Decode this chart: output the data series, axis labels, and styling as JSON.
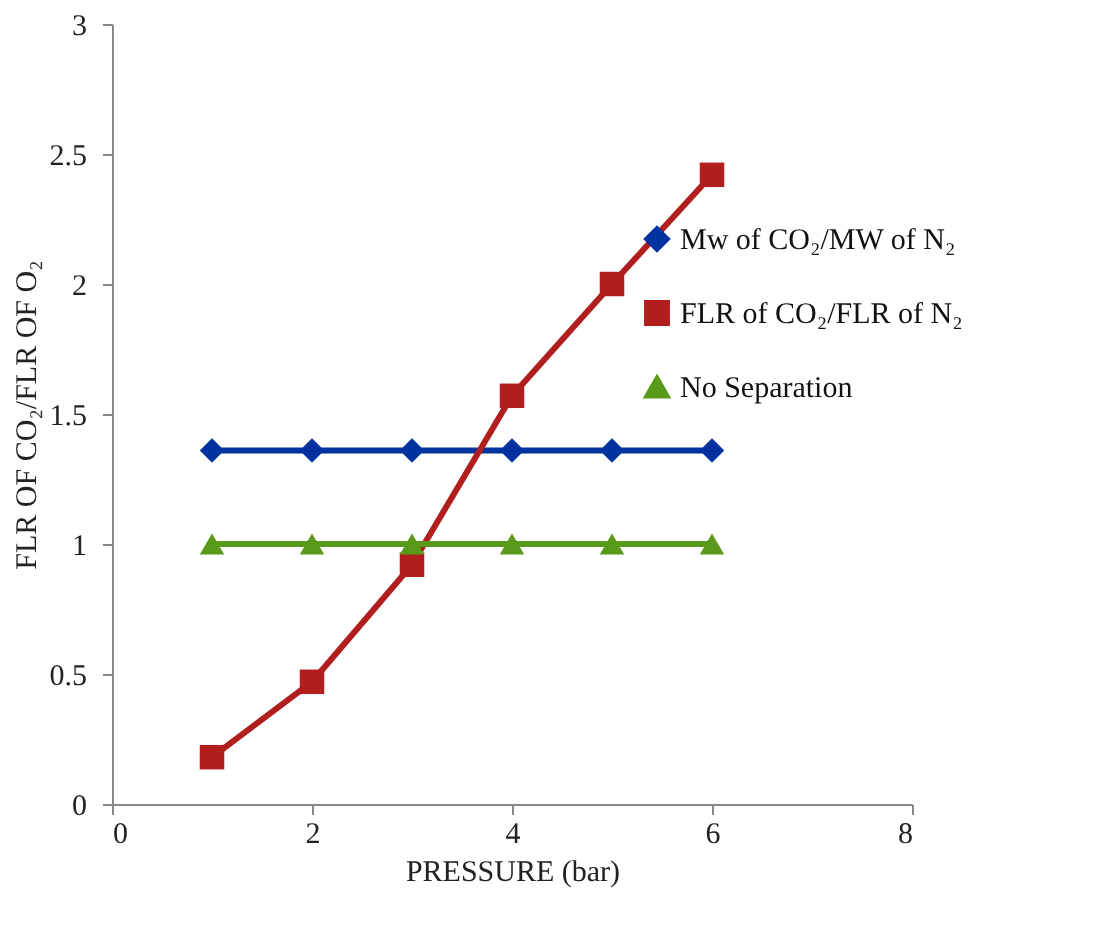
{
  "chart_data": {
    "type": "line",
    "xlabel": "PRESSURE (bar)",
    "ylabel": "FLR OF CO₂/FLR OF O₂",
    "x": [
      1,
      2,
      3,
      4,
      5,
      6
    ],
    "series": [
      {
        "name": "Mw of CO₂/MW of N₂",
        "color": "#0033a0",
        "marker": "diamond",
        "values": [
          1.36,
          1.36,
          1.36,
          1.36,
          1.36,
          1.36
        ]
      },
      {
        "name": "FLR of CO₂/FLR of N₂",
        "color": "#b01e1e",
        "marker": "square",
        "values": [
          0.18,
          0.47,
          0.92,
          1.57,
          2.0,
          2.42
        ]
      },
      {
        "name": "No Separation",
        "color": "#5a9a1a",
        "marker": "triangle",
        "values": [
          1.0,
          1.0,
          1.0,
          1.0,
          1.0,
          1.0
        ]
      }
    ],
    "xlim": [
      0,
      8
    ],
    "xticks": [
      0,
      2,
      4,
      6,
      8
    ],
    "ylim": [
      0,
      3
    ],
    "yticks": [
      0,
      0.5,
      1,
      1.5,
      2,
      2.5,
      3
    ],
    "grid": false,
    "legend": "right",
    "line_style": "solid"
  }
}
